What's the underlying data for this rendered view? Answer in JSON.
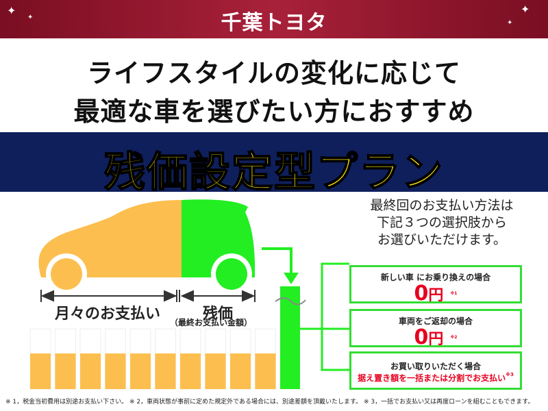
{
  "header": {
    "logo": "千葉トヨタ"
  },
  "headline": {
    "line1": "ライフスタイルの変化に応じて",
    "line2": "最適な車を選びたい方におすすめ"
  },
  "plan_title": "残価設定型プラン",
  "diagram": {
    "monthly_label": "月々のお支払い",
    "residual_label": "残価",
    "residual_sub": "（最終お支払い金額）",
    "colors": {
      "monthly": "#fcbf4f",
      "residual": "#22ee22"
    }
  },
  "info": {
    "line1": "最終回のお支払い方法は",
    "line2": "下記３つの選択肢から",
    "line3": "お選びいただけます。"
  },
  "options": [
    {
      "title": "新しい車  にお乗り換えの場合",
      "amount": "0",
      "unit": "円",
      "note": "※1"
    },
    {
      "title": "車両をご返却の場合",
      "amount": "0",
      "unit": "円",
      "note": "※2"
    },
    {
      "title": "お買い取りいただく場合",
      "detail": "据え置き額を一括または分割でお支払い",
      "note": "※3"
    }
  ],
  "footnote": "※ 1，税金当初費用は別途お支払い下さい。 ※ 2，車両状態が事前に定めた規定外である場合には、別途差額を頂戴いたします。 ※ 3，一括でお支払い又は再度ローンを組むこともできます。"
}
